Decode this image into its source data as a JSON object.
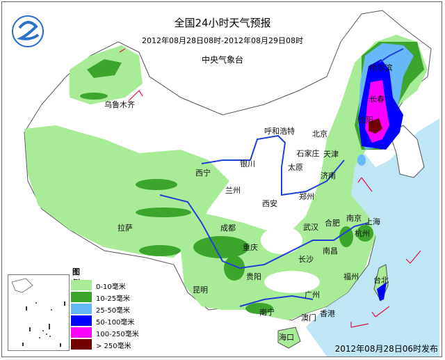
{
  "header": {
    "title": "全国24小时天气预报",
    "period": "2012年08月28日08时-2012年08月29日08时",
    "organization": "中央气象台"
  },
  "footer": {
    "issued": "2012年08月28日06时发布"
  },
  "logo": {
    "icon": "cma-swirl-logo",
    "color": "#2a6fc9"
  },
  "legend": {
    "title": "图例",
    "items": [
      {
        "label": "0-10毫米",
        "color": "#a8ec98"
      },
      {
        "label": "10-25毫米",
        "color": "#3ca62c"
      },
      {
        "label": "25-50毫米",
        "color": "#66b8f8"
      },
      {
        "label": "50-100毫米",
        "color": "#0000fe"
      },
      {
        "label": "100-250毫米",
        "color": "#fc00fc"
      },
      {
        "label": "> 250毫米",
        "color": "#720000"
      }
    ]
  },
  "map": {
    "sea_color": "#bfe6f5",
    "river_color": "#1f3fd6",
    "wind_barb_color": "#e01040",
    "cities": [
      "乌鲁木齐",
      "呼和浩特",
      "北京",
      "石家庄",
      "天津",
      "银川",
      "太原",
      "西宁",
      "兰州",
      "济南",
      "郑州",
      "西安",
      "拉萨",
      "成都",
      "合肥",
      "南京",
      "上海",
      "武汉",
      "杭州",
      "重庆",
      "长沙",
      "南昌",
      "贵阳",
      "昆明",
      "福州",
      "台北",
      "南宁",
      "广州",
      "香港",
      "澳门",
      "海口",
      "哈尔滨",
      "长春",
      "沈阳"
    ]
  }
}
